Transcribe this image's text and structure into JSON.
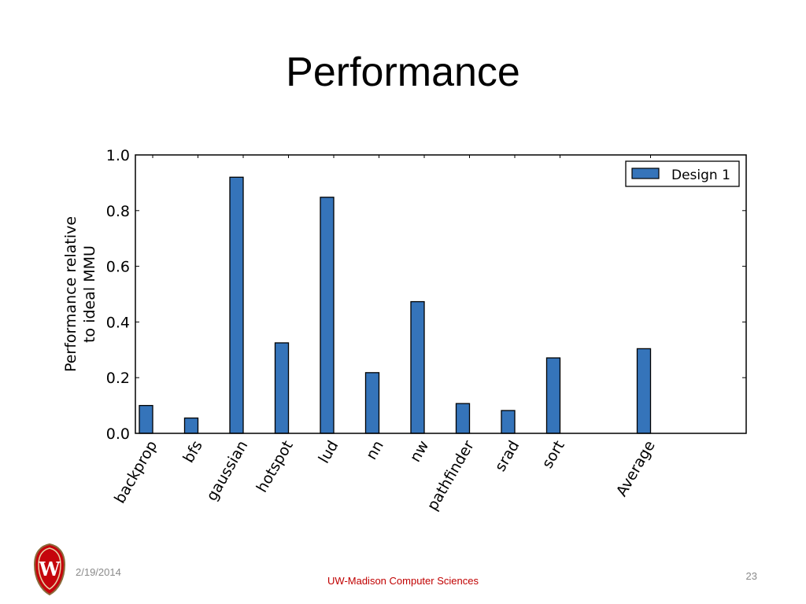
{
  "slide": {
    "title": "Performance",
    "date": "2/19/2014",
    "footer": "UW-Madison Computer Sciences",
    "page_number": "23",
    "logo_icon": "uw-crest-icon",
    "logo_letter": "W"
  },
  "chart_data": {
    "type": "bar",
    "title": "",
    "xlabel": "",
    "ylabel": [
      "Performance relative",
      "to ideal MMU"
    ],
    "ylim": [
      0,
      1.0
    ],
    "yticks": [
      "0.0",
      "0.2",
      "0.4",
      "0.6",
      "0.8",
      "1.0"
    ],
    "grid": false,
    "legend_position": "top-right",
    "categories": [
      "backprop",
      "bfs",
      "gaussian",
      "hotspot",
      "lud",
      "nn",
      "nw",
      "pathfinder",
      "srad",
      "sort",
      "Average"
    ],
    "series": [
      {
        "name": "Design 1",
        "color": "#3574ba",
        "values": [
          0.1,
          0.055,
          0.92,
          0.325,
          0.848,
          0.218,
          0.473,
          0.107,
          0.082,
          0.271,
          0.304
        ]
      }
    ]
  }
}
